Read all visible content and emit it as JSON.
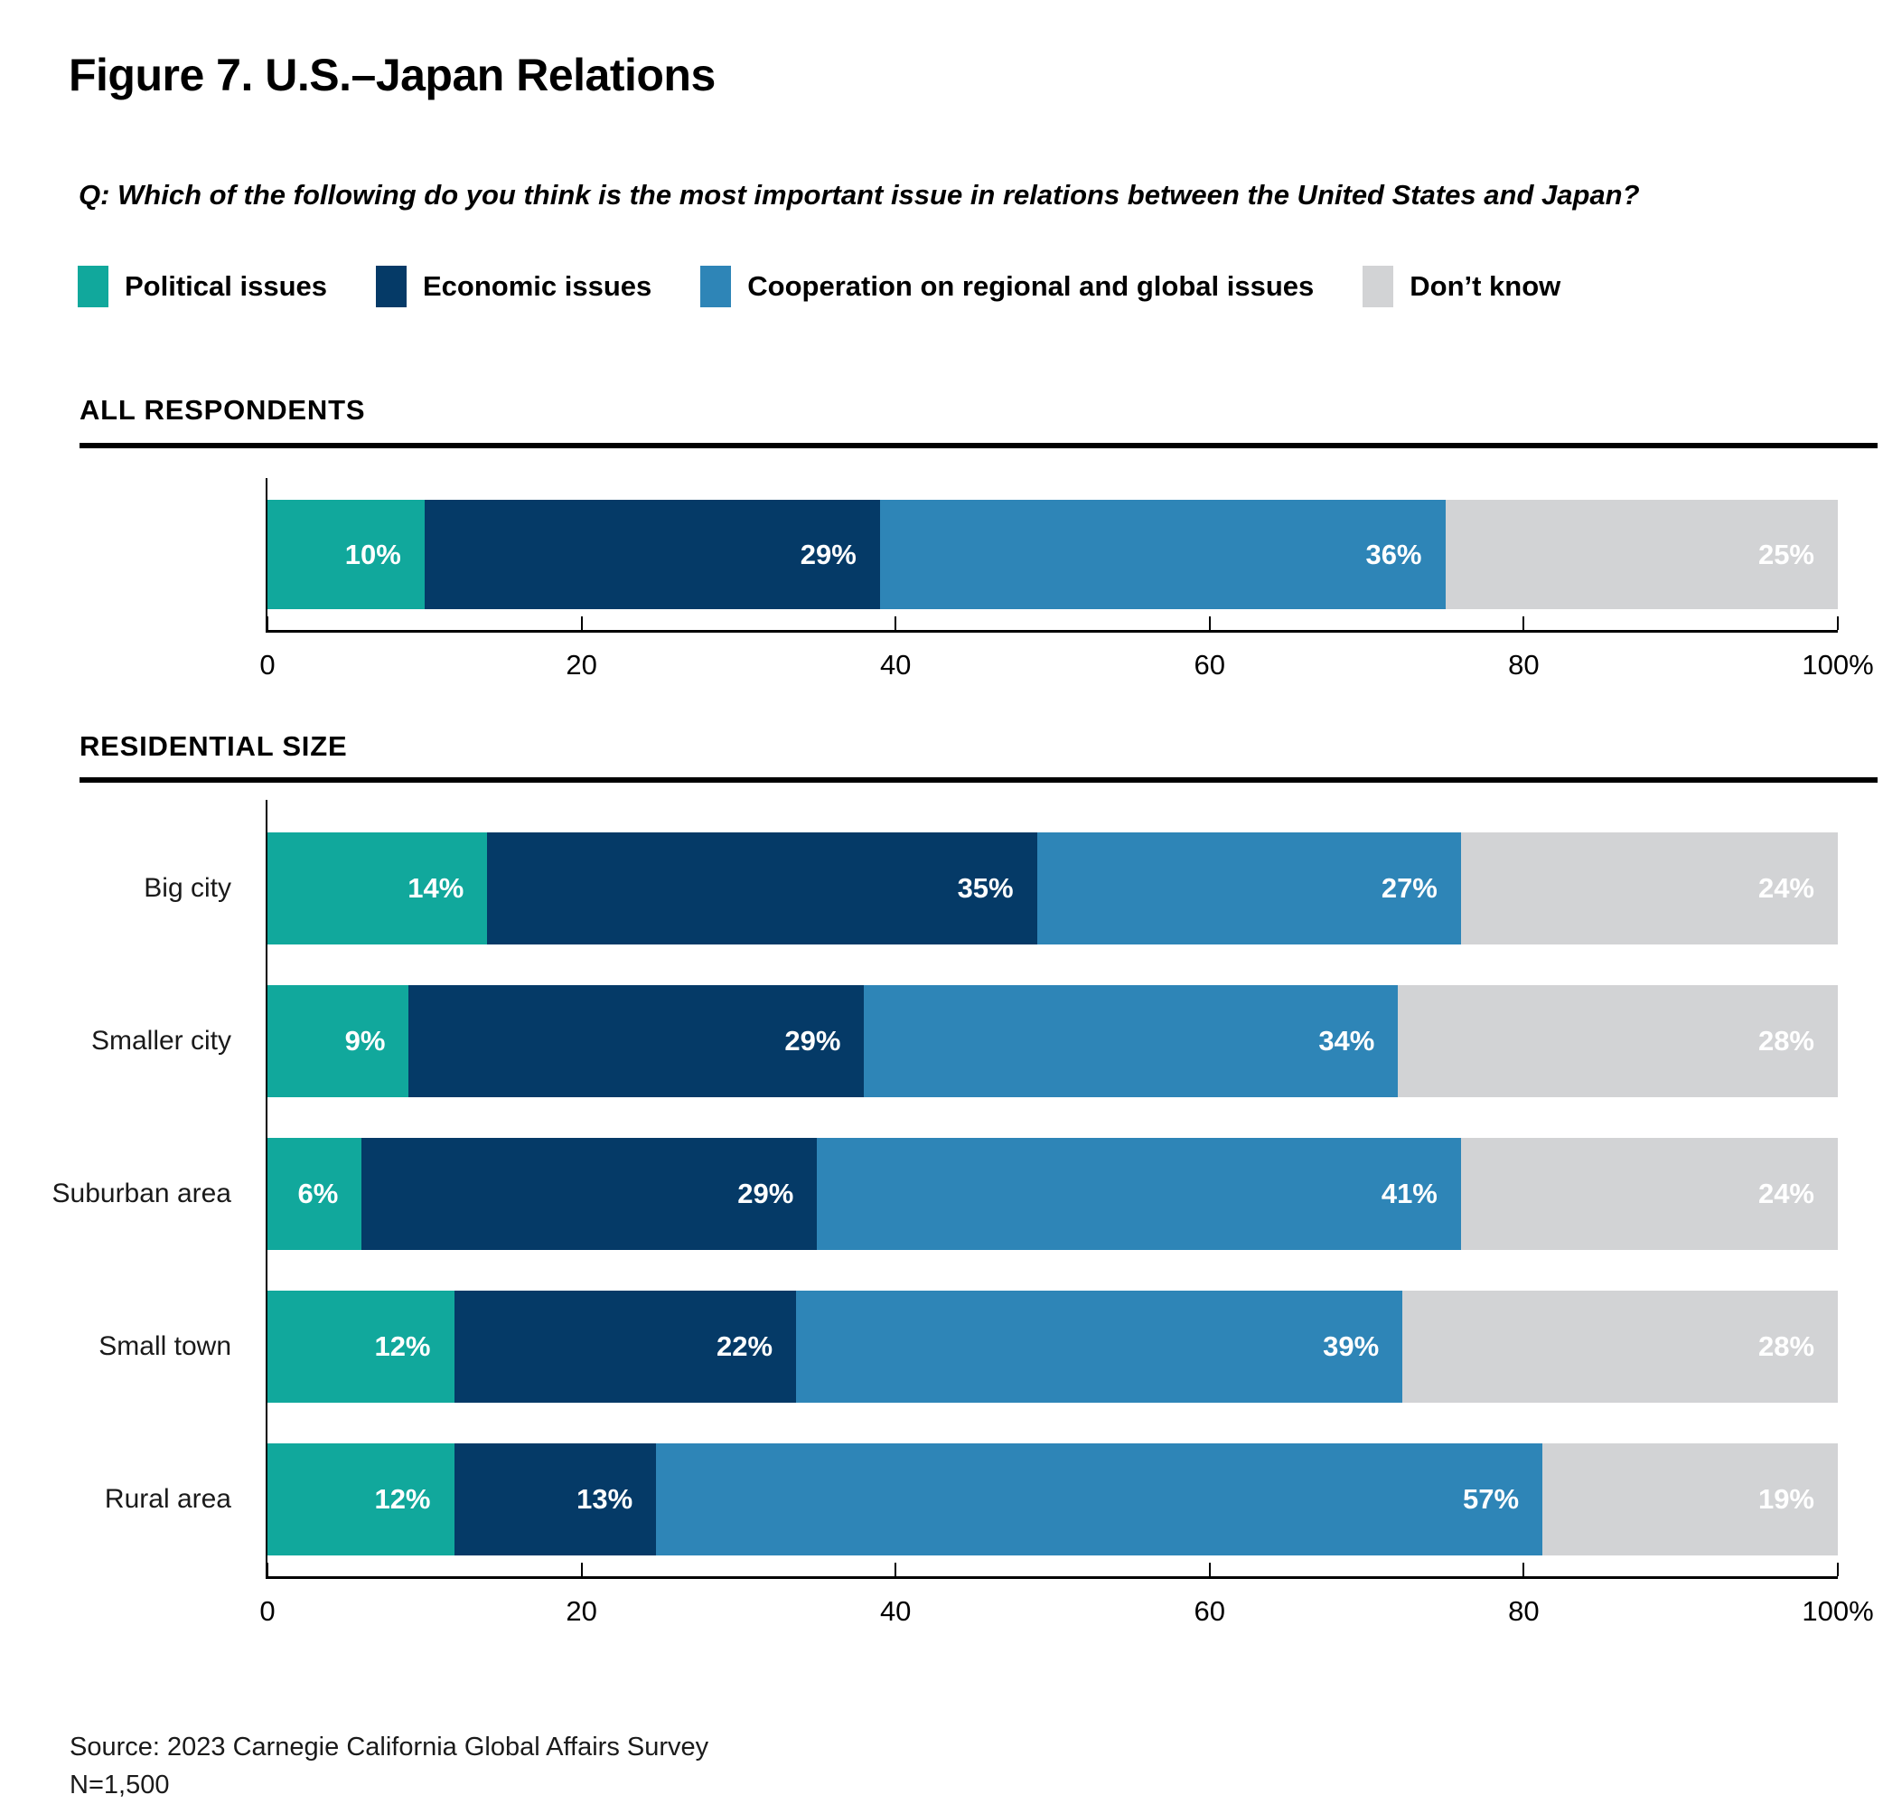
{
  "title": "Figure 7. U.S.–Japan Relations",
  "question": "Q: Which of the following do you think is the most important issue in relations between the United States and Japan?",
  "legend": [
    {
      "label": "Political issues",
      "color": "#11A89C"
    },
    {
      "label": "Economic issues",
      "color": "#053A67"
    },
    {
      "label": "Cooperation on regional and global issues",
      "color": "#2E85B7"
    },
    {
      "label": "Don’t know",
      "color": "#D2D3D5"
    }
  ],
  "source": "Source: 2023 Carnegie California Global Affairs Survey",
  "sample_size": "N=1,500",
  "chart_data": [
    {
      "type": "bar",
      "variant": "horizontal-stacked",
      "section_title": "ALL RESPONDENTS",
      "categories": [
        ""
      ],
      "series": [
        {
          "name": "Political issues",
          "color": "#11A89C",
          "values": [
            10
          ]
        },
        {
          "name": "Economic issues",
          "color": "#053A67",
          "values": [
            29
          ]
        },
        {
          "name": "Cooperation on regional and global issues",
          "color": "#2E85B7",
          "values": [
            36
          ]
        },
        {
          "name": "Don’t know",
          "color": "#D2D3D5",
          "values": [
            25
          ]
        }
      ],
      "value_suffix": "%",
      "xlim": [
        0,
        100
      ],
      "x_ticks": [
        "0",
        "20",
        "40",
        "60",
        "80",
        "100%"
      ],
      "grid": false,
      "legend_position": "top"
    },
    {
      "type": "bar",
      "variant": "horizontal-stacked",
      "section_title": "RESIDENTIAL SIZE",
      "categories": [
        "Big city",
        "Smaller city",
        "Suburban area",
        "Small town",
        "Rural area"
      ],
      "series": [
        {
          "name": "Political issues",
          "color": "#11A89C",
          "values": [
            14,
            9,
            6,
            12,
            12
          ]
        },
        {
          "name": "Economic issues",
          "color": "#053A67",
          "values": [
            35,
            29,
            29,
            22,
            13
          ]
        },
        {
          "name": "Cooperation on regional and global issues",
          "color": "#2E85B7",
          "values": [
            27,
            34,
            41,
            39,
            57
          ]
        },
        {
          "name": "Don’t know",
          "color": "#D2D3D5",
          "values": [
            24,
            28,
            24,
            28,
            19
          ]
        }
      ],
      "value_suffix": "%",
      "xlim": [
        0,
        100
      ],
      "x_ticks": [
        "0",
        "20",
        "40",
        "60",
        "80",
        "100%"
      ],
      "grid": false,
      "legend_position": "top"
    }
  ]
}
